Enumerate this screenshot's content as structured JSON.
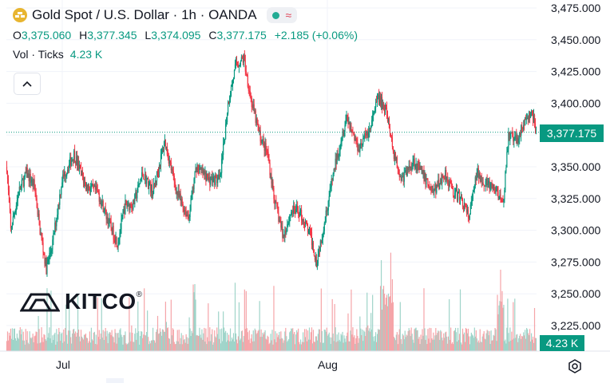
{
  "header": {
    "title": "Gold Spot / U.S. Dollar · 1h · OANDA",
    "symbol_icon": "gold-bars-icon",
    "status_icons": [
      "market-open-dot-icon",
      "replay-wave-icon"
    ],
    "ohlc": {
      "o_label": "O",
      "o": "3,375.060",
      "h_label": "H",
      "h": "3,377.345",
      "l_label": "L",
      "l": "3,374.095",
      "c_label": "C",
      "c": "3,377.175",
      "change": "+2.185 (+0.06%)"
    },
    "volume_label": "Vol · Ticks",
    "volume_value": "4.23 K"
  },
  "logo": {
    "text": "KITCO",
    "mark": "®"
  },
  "price_badge": "3,377.175",
  "volume_badge": "4.23 K",
  "colors": {
    "up": "#089981",
    "down": "#f23645",
    "up_vol": "#9fd4c9",
    "down_vol": "#f5a4a8",
    "accent_gold": "#e8b530"
  },
  "chart_data": {
    "type": "candlestick",
    "interval": "1h",
    "y_ticks": [
      "3,475.000",
      "3,450.000",
      "3,425.000",
      "3,400.000",
      "3,375.000",
      "3,350.000",
      "3,325.000",
      "3,300.000",
      "3,275.000",
      "3,250.000",
      "3,225.000"
    ],
    "x_ticks": [
      "Jul",
      "Aug"
    ],
    "ylim": [
      3215,
      3480
    ],
    "last_price": 3377.175,
    "path_keypoints": [
      [
        0,
        3350
      ],
      [
        5,
        3300
      ],
      [
        15,
        3330
      ],
      [
        25,
        3345
      ],
      [
        35,
        3335
      ],
      [
        42,
        3300
      ],
      [
        50,
        3270
      ],
      [
        58,
        3290
      ],
      [
        70,
        3340
      ],
      [
        85,
        3360
      ],
      [
        100,
        3335
      ],
      [
        115,
        3330
      ],
      [
        130,
        3305
      ],
      [
        140,
        3290
      ],
      [
        150,
        3320
      ],
      [
        160,
        3320
      ],
      [
        172,
        3345
      ],
      [
        185,
        3330
      ],
      [
        200,
        3370
      ],
      [
        215,
        3330
      ],
      [
        230,
        3310
      ],
      [
        240,
        3350
      ],
      [
        255,
        3340
      ],
      [
        270,
        3340
      ],
      [
        280,
        3400
      ],
      [
        290,
        3430
      ],
      [
        300,
        3435
      ],
      [
        310,
        3400
      ],
      [
        320,
        3375
      ],
      [
        330,
        3360
      ],
      [
        340,
        3320
      ],
      [
        350,
        3295
      ],
      [
        360,
        3315
      ],
      [
        370,
        3315
      ],
      [
        385,
        3295
      ],
      [
        392,
        3275
      ],
      [
        400,
        3300
      ],
      [
        415,
        3350
      ],
      [
        430,
        3390
      ],
      [
        445,
        3365
      ],
      [
        460,
        3380
      ],
      [
        470,
        3405
      ],
      [
        480,
        3395
      ],
      [
        490,
        3360
      ],
      [
        500,
        3340
      ],
      [
        515,
        3355
      ],
      [
        530,
        3340
      ],
      [
        540,
        3330
      ],
      [
        555,
        3345
      ],
      [
        565,
        3330
      ],
      [
        575,
        3325
      ],
      [
        585,
        3310
      ],
      [
        595,
        3345
      ],
      [
        610,
        3335
      ],
      [
        620,
        3330
      ],
      [
        628,
        3320
      ],
      [
        635,
        3375
      ],
      [
        645,
        3370
      ],
      [
        655,
        3385
      ],
      [
        665,
        3392
      ],
      [
        670,
        3378
      ]
    ]
  }
}
